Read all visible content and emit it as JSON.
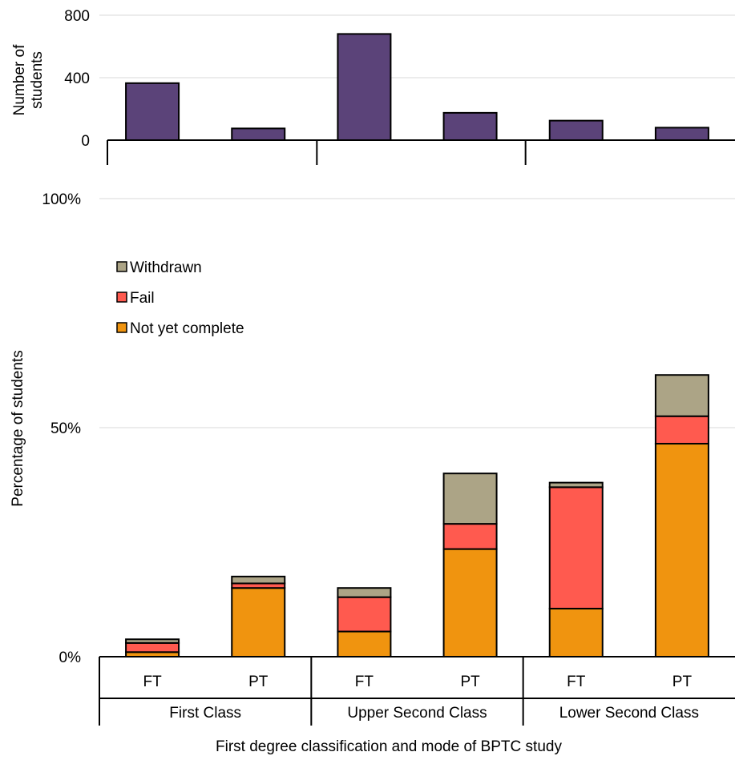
{
  "chart_data": [
    {
      "type": "bar",
      "ylabel": "Number of students",
      "ylabel_lines": [
        "Number of",
        "students"
      ],
      "ylim": [
        0,
        800
      ],
      "yticks": [
        "0",
        "400",
        "800"
      ],
      "grid": true,
      "categories": [
        {
          "group": "First Class",
          "mode": "FT"
        },
        {
          "group": "First Class",
          "mode": "PT"
        },
        {
          "group": "Upper Second Class",
          "mode": "FT"
        },
        {
          "group": "Upper Second Class",
          "mode": "PT"
        },
        {
          "group": "Lower Second Class",
          "mode": "FT"
        },
        {
          "group": "Lower Second Class",
          "mode": "PT"
        }
      ],
      "values": [
        365,
        75,
        680,
        175,
        125,
        80
      ],
      "color": "#5b4379"
    },
    {
      "type": "bar",
      "stacked": true,
      "ylabel": "Percentage of students",
      "xlabel": "First degree classification and mode of BPTC study",
      "ylim": [
        0,
        100
      ],
      "yticks": [
        "0%",
        "50%",
        "100%"
      ],
      "grid": true,
      "legend_position": "upper-left",
      "groups": [
        "First Class",
        "Upper Second Class",
        "Lower Second Class"
      ],
      "categories": [
        "FT",
        "PT",
        "FT",
        "PT",
        "FT",
        "PT"
      ],
      "series": [
        {
          "name": "Not yet complete",
          "color": "#f0940f",
          "values": [
            1,
            15,
            5.5,
            23.5,
            10.5,
            46.5
          ]
        },
        {
          "name": "Fail",
          "color": "#ff5a4f",
          "values": [
            2,
            1,
            7.5,
            5.5,
            26.5,
            6
          ]
        },
        {
          "name": "Withdrawn",
          "color": "#aca486",
          "values": [
            0.8,
            1.5,
            2,
            11,
            1,
            9
          ]
        }
      ],
      "legend_order": [
        "Withdrawn",
        "Fail",
        "Not yet complete"
      ]
    }
  ]
}
